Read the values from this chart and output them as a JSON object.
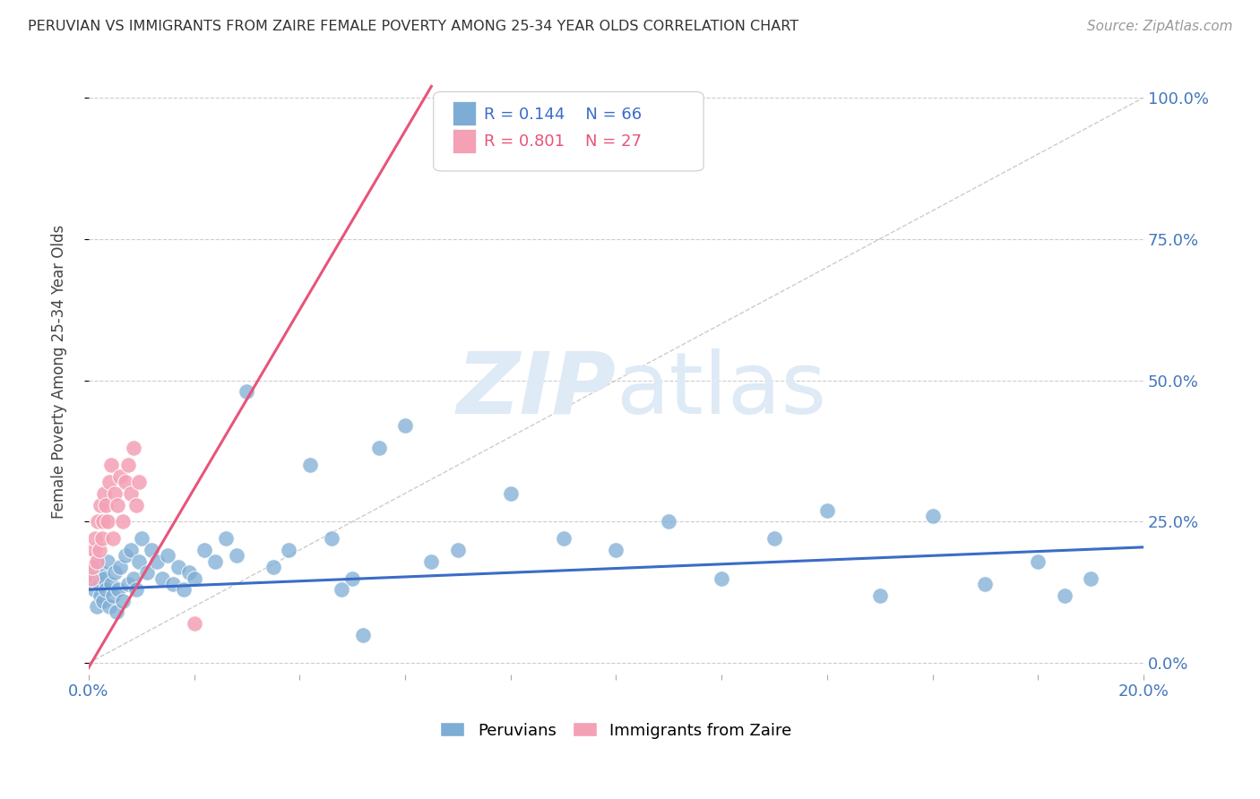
{
  "title": "PERUVIAN VS IMMIGRANTS FROM ZAIRE FEMALE POVERTY AMONG 25-34 YEAR OLDS CORRELATION CHART",
  "source": "Source: ZipAtlas.com",
  "ylabel": "Female Poverty Among 25-34 Year Olds",
  "xlim": [
    0.0,
    0.2
  ],
  "ylim": [
    -0.02,
    1.05
  ],
  "yticks_right": [
    0.0,
    0.25,
    0.5,
    0.75,
    1.0
  ],
  "ytick_right_labels": [
    "0.0%",
    "25.0%",
    "50.0%",
    "75.0%",
    "100.0%"
  ],
  "xticks": [
    0.0,
    0.02,
    0.04,
    0.06,
    0.08,
    0.1,
    0.12,
    0.14,
    0.16,
    0.18,
    0.2
  ],
  "grid_color": "#cccccc",
  "background_color": "#ffffff",
  "peruvians_color": "#7dadd4",
  "zaire_color": "#f4a0b5",
  "peruvians_R": 0.144,
  "peruvians_N": 66,
  "zaire_R": 0.801,
  "zaire_N": 27,
  "ref_line_color": "#cccccc",
  "trend_blue_color": "#3b6cc7",
  "trend_pink_color": "#e8547a",
  "watermark_color": "#deeaf5",
  "peruvians_x": [
    0.0008,
    0.001,
    0.0012,
    0.0015,
    0.0018,
    0.002,
    0.0022,
    0.0025,
    0.0028,
    0.003,
    0.0033,
    0.0036,
    0.004,
    0.0043,
    0.0046,
    0.005,
    0.0053,
    0.0056,
    0.006,
    0.0065,
    0.007,
    0.0075,
    0.008,
    0.0085,
    0.009,
    0.0095,
    0.01,
    0.011,
    0.012,
    0.013,
    0.014,
    0.015,
    0.016,
    0.017,
    0.018,
    0.019,
    0.02,
    0.022,
    0.024,
    0.026,
    0.028,
    0.03,
    0.035,
    0.038,
    0.042,
    0.046,
    0.05,
    0.055,
    0.06,
    0.065,
    0.07,
    0.08,
    0.09,
    0.1,
    0.11,
    0.12,
    0.13,
    0.14,
    0.15,
    0.16,
    0.17,
    0.18,
    0.185,
    0.19,
    0.048,
    0.052
  ],
  "peruvians_y": [
    0.15,
    0.13,
    0.17,
    0.1,
    0.18,
    0.14,
    0.12,
    0.16,
    0.11,
    0.15,
    0.13,
    0.18,
    0.1,
    0.14,
    0.12,
    0.16,
    0.09,
    0.13,
    0.17,
    0.11,
    0.19,
    0.14,
    0.2,
    0.15,
    0.13,
    0.18,
    0.22,
    0.16,
    0.2,
    0.18,
    0.15,
    0.19,
    0.14,
    0.17,
    0.13,
    0.16,
    0.15,
    0.2,
    0.18,
    0.22,
    0.19,
    0.48,
    0.17,
    0.2,
    0.35,
    0.22,
    0.15,
    0.38,
    0.42,
    0.18,
    0.2,
    0.3,
    0.22,
    0.2,
    0.25,
    0.15,
    0.22,
    0.27,
    0.12,
    0.26,
    0.14,
    0.18,
    0.12,
    0.15,
    0.13,
    0.05
  ],
  "zaire_x": [
    0.0005,
    0.0008,
    0.001,
    0.0012,
    0.0015,
    0.0018,
    0.002,
    0.0022,
    0.0025,
    0.0028,
    0.003,
    0.0033,
    0.0036,
    0.004,
    0.0043,
    0.0046,
    0.005,
    0.0055,
    0.006,
    0.0065,
    0.007,
    0.0075,
    0.008,
    0.0085,
    0.009,
    0.0095,
    0.02
  ],
  "zaire_y": [
    0.15,
    0.17,
    0.2,
    0.22,
    0.18,
    0.25,
    0.2,
    0.28,
    0.22,
    0.25,
    0.3,
    0.28,
    0.25,
    0.32,
    0.35,
    0.22,
    0.3,
    0.28,
    0.33,
    0.25,
    0.32,
    0.35,
    0.3,
    0.38,
    0.28,
    0.32,
    0.07
  ],
  "blue_trend_x": [
    0.0,
    0.2
  ],
  "blue_trend_y": [
    0.13,
    0.205
  ],
  "pink_trend_x": [
    -0.002,
    0.065
  ],
  "pink_trend_y": [
    -0.04,
    1.02
  ],
  "ref_line_x": [
    0.0,
    0.2
  ],
  "ref_line_y": [
    0.0,
    1.0
  ]
}
